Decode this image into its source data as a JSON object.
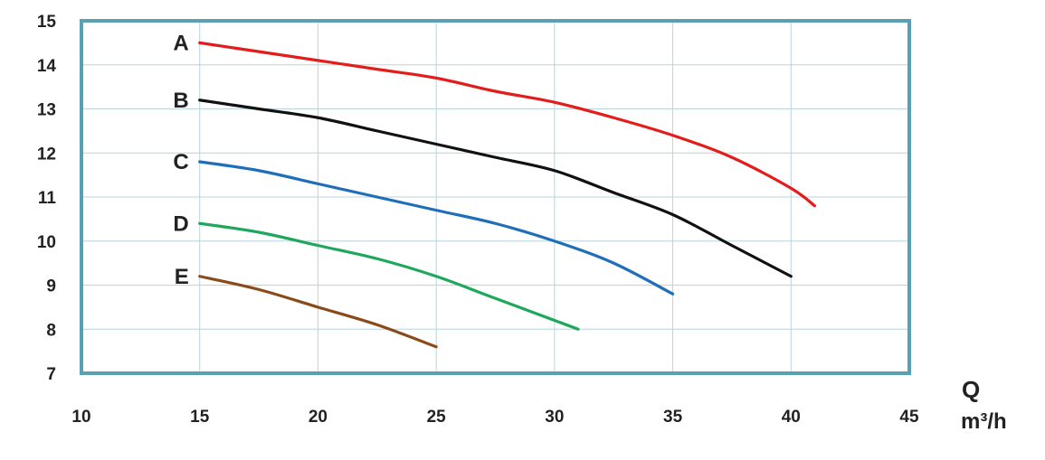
{
  "chart_data": {
    "type": "line",
    "title": "",
    "xlabel": "Q",
    "xunit": "m³/h",
    "ylabel": "",
    "xlim": [
      10,
      45
    ],
    "ylim": [
      7,
      15
    ],
    "xticks": [
      10,
      15,
      20,
      25,
      30,
      35,
      40,
      45
    ],
    "yticks": [
      7,
      8,
      9,
      10,
      11,
      12,
      13,
      14,
      15
    ],
    "grid": true,
    "series": [
      {
        "name": "A",
        "color": "#e31c1c",
        "x": [
          15,
          17.5,
          20,
          22.5,
          25,
          27.5,
          30,
          32.5,
          35,
          37.5,
          40,
          41
        ],
        "y": [
          14.5,
          14.3,
          14.1,
          13.9,
          13.7,
          13.4,
          13.15,
          12.8,
          12.4,
          11.9,
          11.2,
          10.8
        ]
      },
      {
        "name": "B",
        "color": "#111111",
        "x": [
          15,
          17.5,
          20,
          22.5,
          25,
          27.5,
          30,
          32.5,
          35,
          37.5,
          40
        ],
        "y": [
          13.2,
          13.0,
          12.8,
          12.5,
          12.2,
          11.9,
          11.6,
          11.1,
          10.6,
          9.9,
          9.2
        ]
      },
      {
        "name": "C",
        "color": "#1f6fb8",
        "x": [
          15,
          17.5,
          20,
          22.5,
          25,
          27.5,
          30,
          32.5,
          35
        ],
        "y": [
          11.8,
          11.6,
          11.3,
          11.0,
          10.7,
          10.4,
          10.0,
          9.5,
          8.8
        ]
      },
      {
        "name": "D",
        "color": "#1fa85c",
        "x": [
          15,
          17.5,
          20,
          22.5,
          25,
          27.5,
          31
        ],
        "y": [
          10.4,
          10.2,
          9.9,
          9.6,
          9.2,
          8.7,
          8.0
        ]
      },
      {
        "name": "E",
        "color": "#8b4a1a",
        "x": [
          15,
          17.5,
          20,
          22.5,
          25
        ],
        "y": [
          9.2,
          8.9,
          8.5,
          8.1,
          7.6
        ]
      }
    ]
  }
}
